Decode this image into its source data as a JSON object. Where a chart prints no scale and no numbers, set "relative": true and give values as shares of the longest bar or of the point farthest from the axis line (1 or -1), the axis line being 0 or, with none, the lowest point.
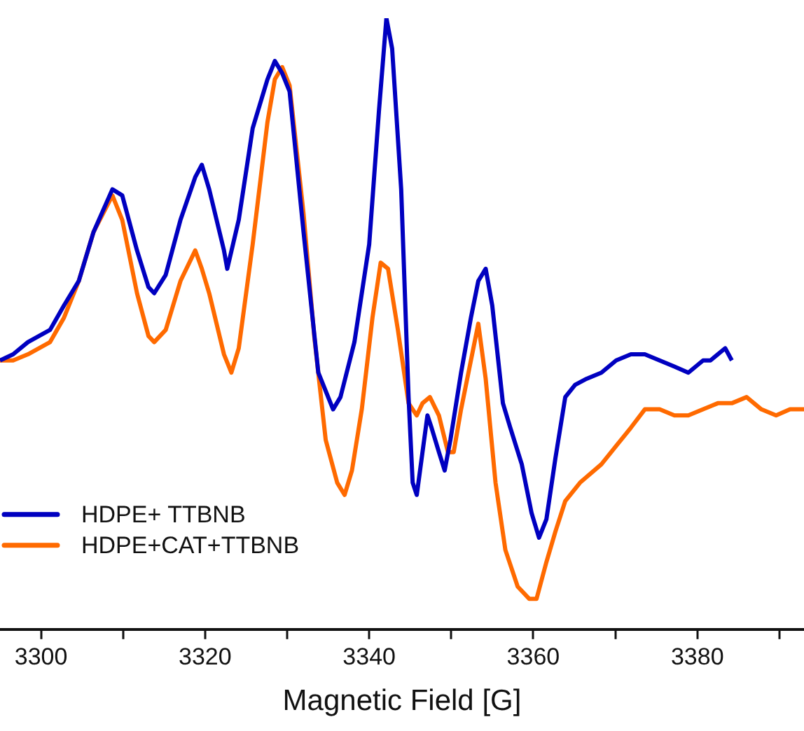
{
  "chart_data": {
    "type": "line",
    "xlabel": "Magnetic Field [G]",
    "relative": true,
    "xlim": [
      3295,
      3393
    ],
    "xticks": [
      3300,
      {
        "value": 3310,
        "label": null
      },
      3320,
      {
        "value": 3330,
        "label": null
      },
      3340,
      {
        "value": 3350,
        "label": null
      },
      3360,
      {
        "value": 3370,
        "label": null
      },
      3380,
      {
        "value": 3390,
        "label": null
      }
    ],
    "legend": "bottom left",
    "marker": "none",
    "grid": false,
    "series": [
      {
        "name": "HDPE+ TTBNB",
        "color": "#0000c0",
        "x": [
          3295.0,
          3296.6,
          3298.4,
          3301.1,
          3302.8,
          3304.6,
          3306.4,
          3308.7,
          3309.9,
          3311.7,
          3313.1,
          3313.8,
          3315.2,
          3317.0,
          3318.8,
          3319.6,
          3320.5,
          3322.3,
          3322.7,
          3324.1,
          3325.8,
          3327.6,
          3328.5,
          3329.4,
          3330.3,
          3332.0,
          3333.8,
          3335.6,
          3336.5,
          3338.2,
          3340.0,
          3341.2,
          3342.1,
          3342.8,
          3343.9,
          3344.8,
          3345.3,
          3345.8,
          3346.5,
          3347.1,
          3347.6,
          3348.5,
          3349.2,
          3349.9,
          3351.2,
          3352.4,
          3353.3,
          3354.2,
          3355.0,
          3356.3,
          3357.2,
          3358.6,
          3359.8,
          3360.7,
          3361.6,
          3362.7,
          3363.9,
          3365.1,
          3366.5,
          3368.3,
          3370.1,
          3371.9,
          3373.6,
          3375.4,
          3377.2,
          3378.9,
          3380.7,
          3381.6,
          3383.4,
          3384.2
        ],
        "values": [
          0.44,
          0.45,
          0.47,
          0.49,
          0.53,
          0.57,
          0.65,
          0.72,
          0.71,
          0.62,
          0.56,
          0.55,
          0.58,
          0.67,
          0.74,
          0.76,
          0.72,
          0.62,
          0.59,
          0.67,
          0.82,
          0.9,
          0.93,
          0.91,
          0.88,
          0.65,
          0.42,
          0.36,
          0.38,
          0.47,
          0.63,
          0.85,
          1.0,
          0.95,
          0.72,
          0.38,
          0.24,
          0.22,
          0.29,
          0.35,
          0.33,
          0.29,
          0.26,
          0.31,
          0.42,
          0.51,
          0.57,
          0.59,
          0.53,
          0.37,
          0.33,
          0.27,
          0.19,
          0.15,
          0.18,
          0.28,
          0.38,
          0.4,
          0.41,
          0.42,
          0.44,
          0.45,
          0.45,
          0.44,
          0.43,
          0.42,
          0.44,
          0.44,
          0.46,
          0.44
        ]
      },
      {
        "name": "HDPE+CAT+TTBNB",
        "color": "#ff6a00",
        "x": [
          3295.0,
          3296.6,
          3298.4,
          3301.1,
          3302.8,
          3304.6,
          3306.4,
          3308.7,
          3309.9,
          3311.7,
          3313.1,
          3313.8,
          3315.2,
          3317.0,
          3318.8,
          3319.6,
          3320.5,
          3322.3,
          3323.2,
          3324.1,
          3325.8,
          3327.6,
          3328.5,
          3329.4,
          3330.3,
          3332.0,
          3333.3,
          3334.7,
          3336.1,
          3337.0,
          3337.9,
          3339.1,
          3340.4,
          3341.4,
          3342.3,
          3343.5,
          3344.8,
          3345.8,
          3346.5,
          3347.4,
          3348.5,
          3349.6,
          3350.3,
          3351.2,
          3352.4,
          3353.3,
          3354.2,
          3355.4,
          3356.6,
          3358.1,
          3359.5,
          3360.4,
          3361.6,
          3362.7,
          3363.9,
          3365.7,
          3368.3,
          3370.1,
          3371.9,
          3373.6,
          3375.4,
          3377.2,
          3378.9,
          3380.7,
          3382.5,
          3384.2,
          3386.0,
          3387.8,
          3389.6,
          3391.3,
          3393.0
        ],
        "values": [
          0.44,
          0.44,
          0.45,
          0.47,
          0.51,
          0.57,
          0.65,
          0.71,
          0.67,
          0.55,
          0.48,
          0.47,
          0.49,
          0.57,
          0.62,
          0.59,
          0.55,
          0.45,
          0.42,
          0.46,
          0.63,
          0.83,
          0.9,
          0.92,
          0.89,
          0.68,
          0.48,
          0.31,
          0.24,
          0.22,
          0.26,
          0.36,
          0.51,
          0.6,
          0.59,
          0.49,
          0.37,
          0.35,
          0.37,
          0.38,
          0.35,
          0.29,
          0.29,
          0.36,
          0.44,
          0.5,
          0.41,
          0.24,
          0.13,
          0.07,
          0.05,
          0.05,
          0.11,
          0.16,
          0.21,
          0.24,
          0.27,
          0.3,
          0.33,
          0.36,
          0.36,
          0.35,
          0.35,
          0.36,
          0.37,
          0.37,
          0.38,
          0.36,
          0.35,
          0.36,
          0.36
        ]
      }
    ]
  }
}
